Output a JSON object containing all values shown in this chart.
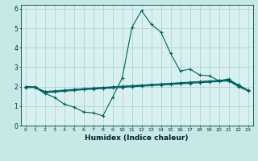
{
  "xlabel": "Humidex (Indice chaleur)",
  "ylabel": "",
  "background_color": "#c8e8e8",
  "plot_bg_color": "#d8f0f0",
  "grid_color": "#a8d0d0",
  "line_color": "#006060",
  "xlim": [
    -0.5,
    23.5
  ],
  "ylim": [
    0,
    6.2
  ],
  "xticks": [
    0,
    1,
    2,
    3,
    4,
    5,
    6,
    7,
    8,
    9,
    10,
    11,
    12,
    13,
    14,
    15,
    16,
    17,
    18,
    19,
    20,
    21,
    22,
    23
  ],
  "yticks": [
    0,
    1,
    2,
    3,
    4,
    5,
    6
  ],
  "series": [
    [
      1.95,
      1.95,
      1.65,
      1.45,
      1.1,
      0.95,
      0.7,
      0.65,
      0.5,
      1.45,
      2.45,
      5.05,
      5.9,
      5.2,
      4.8,
      3.7,
      2.8,
      2.9,
      2.6,
      2.55,
      2.3,
      2.4,
      2.05,
      1.8
    ],
    [
      2.0,
      1.98,
      1.75,
      1.78,
      1.82,
      1.86,
      1.9,
      1.93,
      1.96,
      1.99,
      2.02,
      2.05,
      2.08,
      2.11,
      2.14,
      2.17,
      2.2,
      2.23,
      2.26,
      2.29,
      2.32,
      2.35,
      2.1,
      1.82
    ],
    [
      2.0,
      1.98,
      1.72,
      1.76,
      1.8,
      1.84,
      1.88,
      1.91,
      1.94,
      1.97,
      2.0,
      2.03,
      2.06,
      2.09,
      2.12,
      2.15,
      2.18,
      2.21,
      2.24,
      2.27,
      2.3,
      2.33,
      2.05,
      1.8
    ],
    [
      2.0,
      1.98,
      1.68,
      1.72,
      1.76,
      1.8,
      1.84,
      1.87,
      1.9,
      1.93,
      1.96,
      1.99,
      2.02,
      2.05,
      2.08,
      2.11,
      2.14,
      2.17,
      2.2,
      2.23,
      2.26,
      2.29,
      2.0,
      1.78
    ]
  ]
}
